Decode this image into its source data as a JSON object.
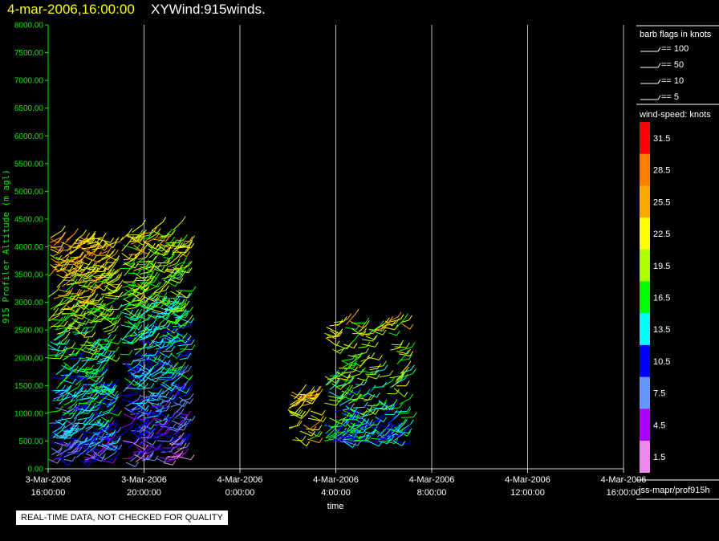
{
  "header": {
    "date_time": "4-mar-2006,16:00:00",
    "title": "XYWind:915winds."
  },
  "footer_note": "REAL-TIME DATA, NOT CHECKED FOR QUALITY",
  "legend": {
    "barb_title": "barb flags in knots",
    "barbs": [
      {
        "label": "== 100"
      },
      {
        "label": "== 50"
      },
      {
        "label": "== 10"
      },
      {
        "label": "== 5"
      }
    ],
    "colorbar_title": "wind-speed: knots",
    "colorbar": [
      {
        "label": "31.5",
        "color": "#ff0000"
      },
      {
        "label": "28.5",
        "color": "#ff7f00"
      },
      {
        "label": "25.5",
        "color": "#ffaa00"
      },
      {
        "label": "22.5",
        "color": "#ffff00"
      },
      {
        "label": "19.5",
        "color": "#aaff00"
      },
      {
        "label": "16.5",
        "color": "#00ff00"
      },
      {
        "label": "13.5",
        "color": "#00ffff"
      },
      {
        "label": "10.5",
        "color": "#0000ff"
      },
      {
        "label": "7.5",
        "color": "#6699ff"
      },
      {
        "label": "4.5",
        "color": "#aa00ff"
      },
      {
        "label": "1.5",
        "color": "#ee88ee"
      }
    ],
    "source": "iss-mapr/prof915h"
  },
  "chart_data": {
    "type": "scatter",
    "xlabel": "time",
    "ylabel": "915 Profiler Altitude (m agl)",
    "ylim": [
      0,
      8000
    ],
    "yticks": [
      "0.00",
      "500.00",
      "1000.00",
      "1500.00",
      "2000.00",
      "2500.00",
      "3000.00",
      "3500.00",
      "4000.00",
      "4500.00",
      "5000.00",
      "5500.00",
      "6000.00",
      "6500.00",
      "7000.00",
      "7500.00",
      "8000.00"
    ],
    "xlim": [
      "3-Mar-2006 16:00:00",
      "4-Mar-2006 16:00:00"
    ],
    "xticks": [
      {
        "date": "3-Mar-2006",
        "time": "16:00:00",
        "hours": 0
      },
      {
        "date": "3-Mar-2006",
        "time": "20:00:00",
        "hours": 4
      },
      {
        "date": "4-Mar-2006",
        "time": "0:00:00",
        "hours": 8
      },
      {
        "date": "4-Mar-2006",
        "time": "4:00:00",
        "hours": 12
      },
      {
        "date": "4-Mar-2006",
        "time": "8:00:00",
        "hours": 16
      },
      {
        "date": "4-Mar-2006",
        "time": "12:00:00",
        "hours": 20
      },
      {
        "date": "4-Mar-2006",
        "time": "16:00:00",
        "hours": 24
      }
    ],
    "grid": "vertical",
    "series": [
      {
        "time_start": "3-Mar-2006 16:00:00",
        "time_end": "3-Mar-2006 18:30:00",
        "alt_min": 100,
        "alt_max": 4200
      },
      {
        "time_start": "3-Mar-2006 19:00:00",
        "time_end": "3-Mar-2006 21:30:00",
        "alt_min": 100,
        "alt_max": 4300
      },
      {
        "time_start": "4-Mar-2006 2:00:00",
        "time_end": "4-Mar-2006 3:00:00",
        "alt_min": 500,
        "alt_max": 1400
      },
      {
        "time_start": "4-Mar-2006 3:30:00",
        "time_end": "4-Mar-2006 6:45:00",
        "alt_min": 500,
        "alt_max": 2700
      }
    ]
  }
}
